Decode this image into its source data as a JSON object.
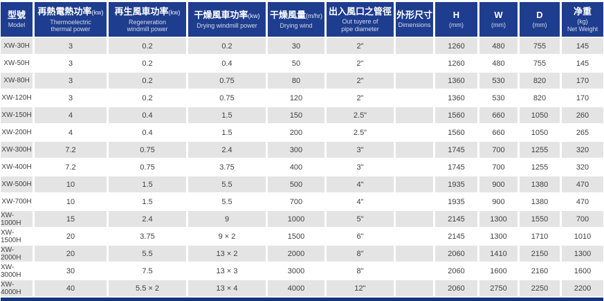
{
  "chart_data": {
    "type": "table",
    "columns": [
      {
        "id": "model",
        "zh": "型號",
        "en": "Model"
      },
      {
        "id": "thermoelectric-power",
        "zh": "再熱電熱功率",
        "unit": "(kw)",
        "en": "Thermoelectric\nthermal power"
      },
      {
        "id": "regeneration-power",
        "zh": "再生風車功率",
        "unit": "(kw)",
        "en": "Regeneration\nwindmill power"
      },
      {
        "id": "drying-windmill-power",
        "zh": "干燥風車功率",
        "unit": "(kw)",
        "en": "Drying windmill power"
      },
      {
        "id": "drying-wind",
        "zh": "干燥風量",
        "unit": "(m/hr)",
        "en": "Drying wind"
      },
      {
        "id": "pipe-diameter",
        "zh": "出入風口之管徑",
        "en": "Out tuyere of\npipe diameter"
      },
      {
        "id": "dimensions",
        "zh": "外形尺寸",
        "en": "Dimensions"
      },
      {
        "id": "h",
        "zh": "H",
        "en": "(mm)"
      },
      {
        "id": "w",
        "zh": "W",
        "en": "(mm)"
      },
      {
        "id": "d",
        "zh": "D",
        "en": "(mm)"
      },
      {
        "id": "net-weight",
        "zh": "净重",
        "en": "(kg)\nNet Weight"
      }
    ],
    "rows": [
      [
        "XW-30H",
        "3",
        "0.2",
        "0.2",
        "30",
        "2\"",
        "",
        "1260",
        "480",
        "755",
        "145"
      ],
      [
        "XW-50H",
        "3",
        "0.2",
        "0.4",
        "50",
        "2\"",
        "",
        "1260",
        "480",
        "755",
        "145"
      ],
      [
        "XW-80H",
        "3",
        "0.2",
        "0.75",
        "80",
        "2\"",
        "",
        "1360",
        "530",
        "820",
        "170"
      ],
      [
        "XW-120H",
        "3",
        "0.2",
        "0.75",
        "120",
        "2\"",
        "",
        "1360",
        "530",
        "820",
        "170"
      ],
      [
        "XW-150H",
        "4",
        "0.4",
        "1.5",
        "150",
        "2.5\"",
        "",
        "1560",
        "660",
        "1050",
        "260"
      ],
      [
        "XW-200H",
        "4",
        "0.4",
        "1.5",
        "200",
        "2.5\"",
        "",
        "1560",
        "660",
        "1050",
        "265"
      ],
      [
        "XW-300H",
        "7.2",
        "0.75",
        "2.4",
        "300",
        "3\"",
        "",
        "1745",
        "700",
        "1255",
        "320"
      ],
      [
        "XW-400H",
        "7.2",
        "0.75",
        "3.75",
        "400",
        "3\"",
        "",
        "1745",
        "700",
        "1255",
        "320"
      ],
      [
        "XW-500H",
        "10",
        "1.5",
        "5.5",
        "500",
        "4\"",
        "",
        "1935",
        "900",
        "1380",
        "470"
      ],
      [
        "XW-700H",
        "10",
        "1.5",
        "5.5",
        "700",
        "4\"",
        "",
        "1935",
        "900",
        "1380",
        "470"
      ],
      [
        "XW-1000H",
        "15",
        "2.4",
        "9",
        "1000",
        "5\"",
        "",
        "2145",
        "1300",
        "1550",
        "700"
      ],
      [
        "XW-1500H",
        "20",
        "3.75",
        "9 × 2",
        "1500",
        "6\"",
        "",
        "2145",
        "1300",
        "1710",
        "1010"
      ],
      [
        "XW-2000H",
        "20",
        "5.5",
        "13 × 2",
        "2000",
        "8\"",
        "",
        "2060",
        "1410",
        "2150",
        "1300"
      ],
      [
        "XW-3000H",
        "30",
        "7.5",
        "13 × 3",
        "3000",
        "8\"",
        "",
        "2060",
        "1600",
        "2160",
        "1600"
      ],
      [
        "XW-4000H",
        "40",
        "5.5 × 2",
        "13 × 4",
        "4000",
        "12\"",
        "",
        "2060",
        "2750",
        "2250",
        "2200"
      ]
    ],
    "layout": {
      "stripe_pattern": "first row gray, alternating",
      "grid": "white 3px column gaps, 2px row gaps"
    }
  },
  "colors": {
    "header_bg": "#1e3d8e",
    "row_alt": "#e4e4e4",
    "footer_bar": "#16337c",
    "body_text": "#404040"
  }
}
